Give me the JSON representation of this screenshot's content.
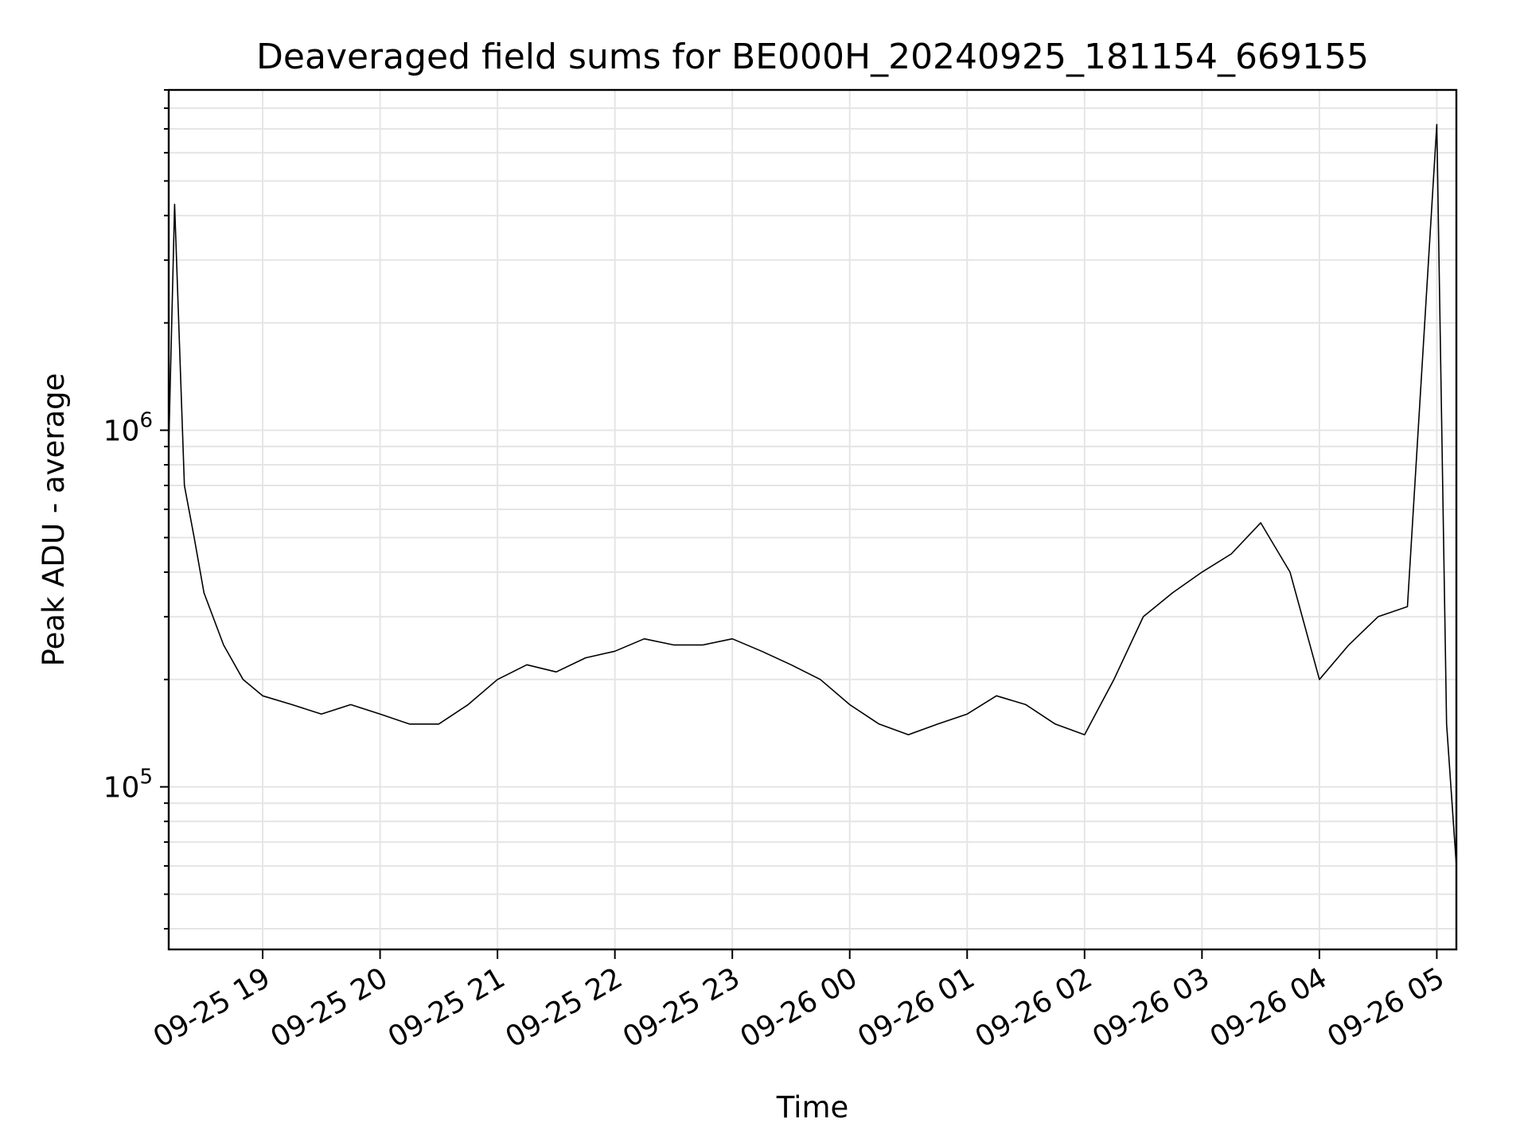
{
  "chart_data": {
    "type": "line",
    "title": "Deaveraged field sums for BE000H_20240925_181154_669155",
    "xlabel": "Time",
    "ylabel": "Peak ADU - average",
    "y_scale": "log",
    "ylim": [
      35000,
      9000000
    ],
    "xlim": [
      "2024-09-25 18:12",
      "2024-09-26 05:10"
    ],
    "grid": true,
    "line_color": "#000000",
    "grid_color": "#e5e5e5",
    "x_ticks": [
      "2024-09-25 19:00",
      "2024-09-25 20:00",
      "2024-09-25 21:00",
      "2024-09-25 22:00",
      "2024-09-25 23:00",
      "2024-09-26 00:00",
      "2024-09-26 01:00",
      "2024-09-26 02:00",
      "2024-09-26 03:00",
      "2024-09-26 04:00",
      "2024-09-26 05:00"
    ],
    "x_tick_labels": [
      "09-25 19",
      "09-25 20",
      "09-25 21",
      "09-25 22",
      "09-25 23",
      "09-26 00",
      "09-26 01",
      "09-26 02",
      "09-26 03",
      "09-26 04",
      "09-26 05"
    ],
    "y_ticks": [
      100000,
      1000000
    ],
    "y_tick_labels": [
      {
        "base": "10",
        "exp": "5"
      },
      {
        "base": "10",
        "exp": "6"
      }
    ],
    "series": [
      {
        "x": [
          "2024-09-25 18:12",
          "2024-09-25 18:15",
          "2024-09-25 18:20",
          "2024-09-25 18:25",
          "2024-09-25 18:30",
          "2024-09-25 18:40",
          "2024-09-25 18:50",
          "2024-09-25 19:00",
          "2024-09-25 19:15",
          "2024-09-25 19:30",
          "2024-09-25 19:45",
          "2024-09-25 20:00",
          "2024-09-25 20:15",
          "2024-09-25 20:30",
          "2024-09-25 20:45",
          "2024-09-25 21:00",
          "2024-09-25 21:15",
          "2024-09-25 21:30",
          "2024-09-25 21:45",
          "2024-09-25 22:00",
          "2024-09-25 22:15",
          "2024-09-25 22:30",
          "2024-09-25 22:45",
          "2024-09-25 23:00",
          "2024-09-25 23:15",
          "2024-09-25 23:30",
          "2024-09-25 23:45",
          "2024-09-26 00:00",
          "2024-09-26 00:15",
          "2024-09-26 00:30",
          "2024-09-26 00:45",
          "2024-09-26 01:00",
          "2024-09-26 01:15",
          "2024-09-26 01:30",
          "2024-09-26 01:45",
          "2024-09-26 02:00",
          "2024-09-26 02:15",
          "2024-09-26 02:30",
          "2024-09-26 02:45",
          "2024-09-26 03:00",
          "2024-09-26 03:15",
          "2024-09-26 03:30",
          "2024-09-26 03:45",
          "2024-09-26 04:00",
          "2024-09-26 04:15",
          "2024-09-26 04:30",
          "2024-09-26 04:45",
          "2024-09-26 05:00",
          "2024-09-26 05:05",
          "2024-09-26 05:10"
        ],
        "y": [
          900000,
          4300000,
          700000,
          500000,
          350000,
          250000,
          200000,
          180000,
          170000,
          160000,
          170000,
          160000,
          150000,
          150000,
          170000,
          200000,
          220000,
          210000,
          230000,
          240000,
          260000,
          250000,
          250000,
          260000,
          240000,
          220000,
          200000,
          170000,
          150000,
          140000,
          150000,
          160000,
          180000,
          170000,
          150000,
          140000,
          200000,
          300000,
          350000,
          400000,
          450000,
          550000,
          400000,
          200000,
          250000,
          300000,
          320000,
          7200000,
          150000,
          60000
        ]
      }
    ]
  }
}
